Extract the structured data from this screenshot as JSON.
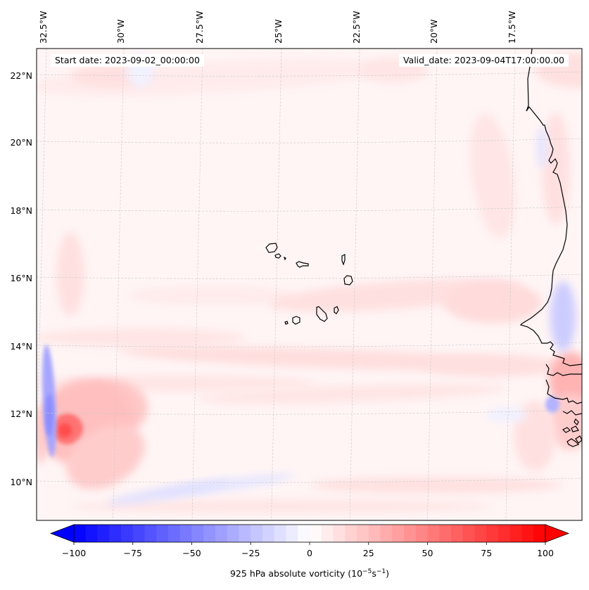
{
  "map": {
    "type": "contour-map",
    "projection": "lambert-like conic",
    "variable": "925 hPa absolute vorticity",
    "start_date_label": "Start date: 2023-09-02_00:00:00",
    "valid_date_label": "Valid_date: 2023-09-04T17:00:00.00",
    "lon_labels": [
      "32.5°W",
      "30°W",
      "27.5°W",
      "25°W",
      "22.5°W",
      "20°W",
      "17.5°W"
    ],
    "lat_labels": [
      "22°N",
      "20°N",
      "18°N",
      "16°N",
      "14°N",
      "12°N",
      "10°N"
    ],
    "extent": {
      "lon_min": -32.9,
      "lon_max": -15.7,
      "lat_min": 8.8,
      "lat_max": 22.7
    },
    "features": [
      {
        "name": "cabo-verde-islands",
        "kind": "islands"
      },
      {
        "name": "west-africa-coastline",
        "kind": "coastline"
      }
    ],
    "notable_anomalies": [
      {
        "name": "positive-vorticity-max",
        "lon": -32.3,
        "lat": 11.5,
        "value_approx": 55
      },
      {
        "name": "negative-vorticity-band",
        "lon": -32.7,
        "lat": 12.0,
        "value_approx": -40
      },
      {
        "name": "coastal-negative-band",
        "lon": -16.0,
        "lat": 13.5,
        "value_approx": -25
      }
    ]
  },
  "colorbar": {
    "colormap": "bwr",
    "vmin": -100,
    "vmax": 100,
    "step": 5,
    "extend": "both",
    "ticks": [
      "−100",
      "−75",
      "−50",
      "−25",
      "0",
      "25",
      "50",
      "75",
      "100"
    ],
    "tick_values": [
      -100,
      -75,
      -50,
      -25,
      0,
      25,
      50,
      75,
      100
    ],
    "label_main": "925 hPa absolute vorticity (10",
    "label_sup1": "−5",
    "label_mid": "s",
    "label_sup2": "−1",
    "label_end": ")",
    "colors": {
      "min": "#0000ff",
      "mid": "#ffffff",
      "max": "#ff0000"
    }
  },
  "chart_data": {
    "type": "heatmap",
    "title": "",
    "xlabel": "",
    "ylabel": "",
    "x_ticks": [
      "32.5°W",
      "30°W",
      "27.5°W",
      "25°W",
      "22.5°W",
      "20°W",
      "17.5°W"
    ],
    "y_ticks": [
      "22°N",
      "20°N",
      "18°N",
      "16°N",
      "14°N",
      "12°N",
      "10°N"
    ],
    "colorbar_range": [
      -100,
      100
    ],
    "colorbar_label": "925 hPa absolute vorticity (10^-5 s^-1)"
  }
}
